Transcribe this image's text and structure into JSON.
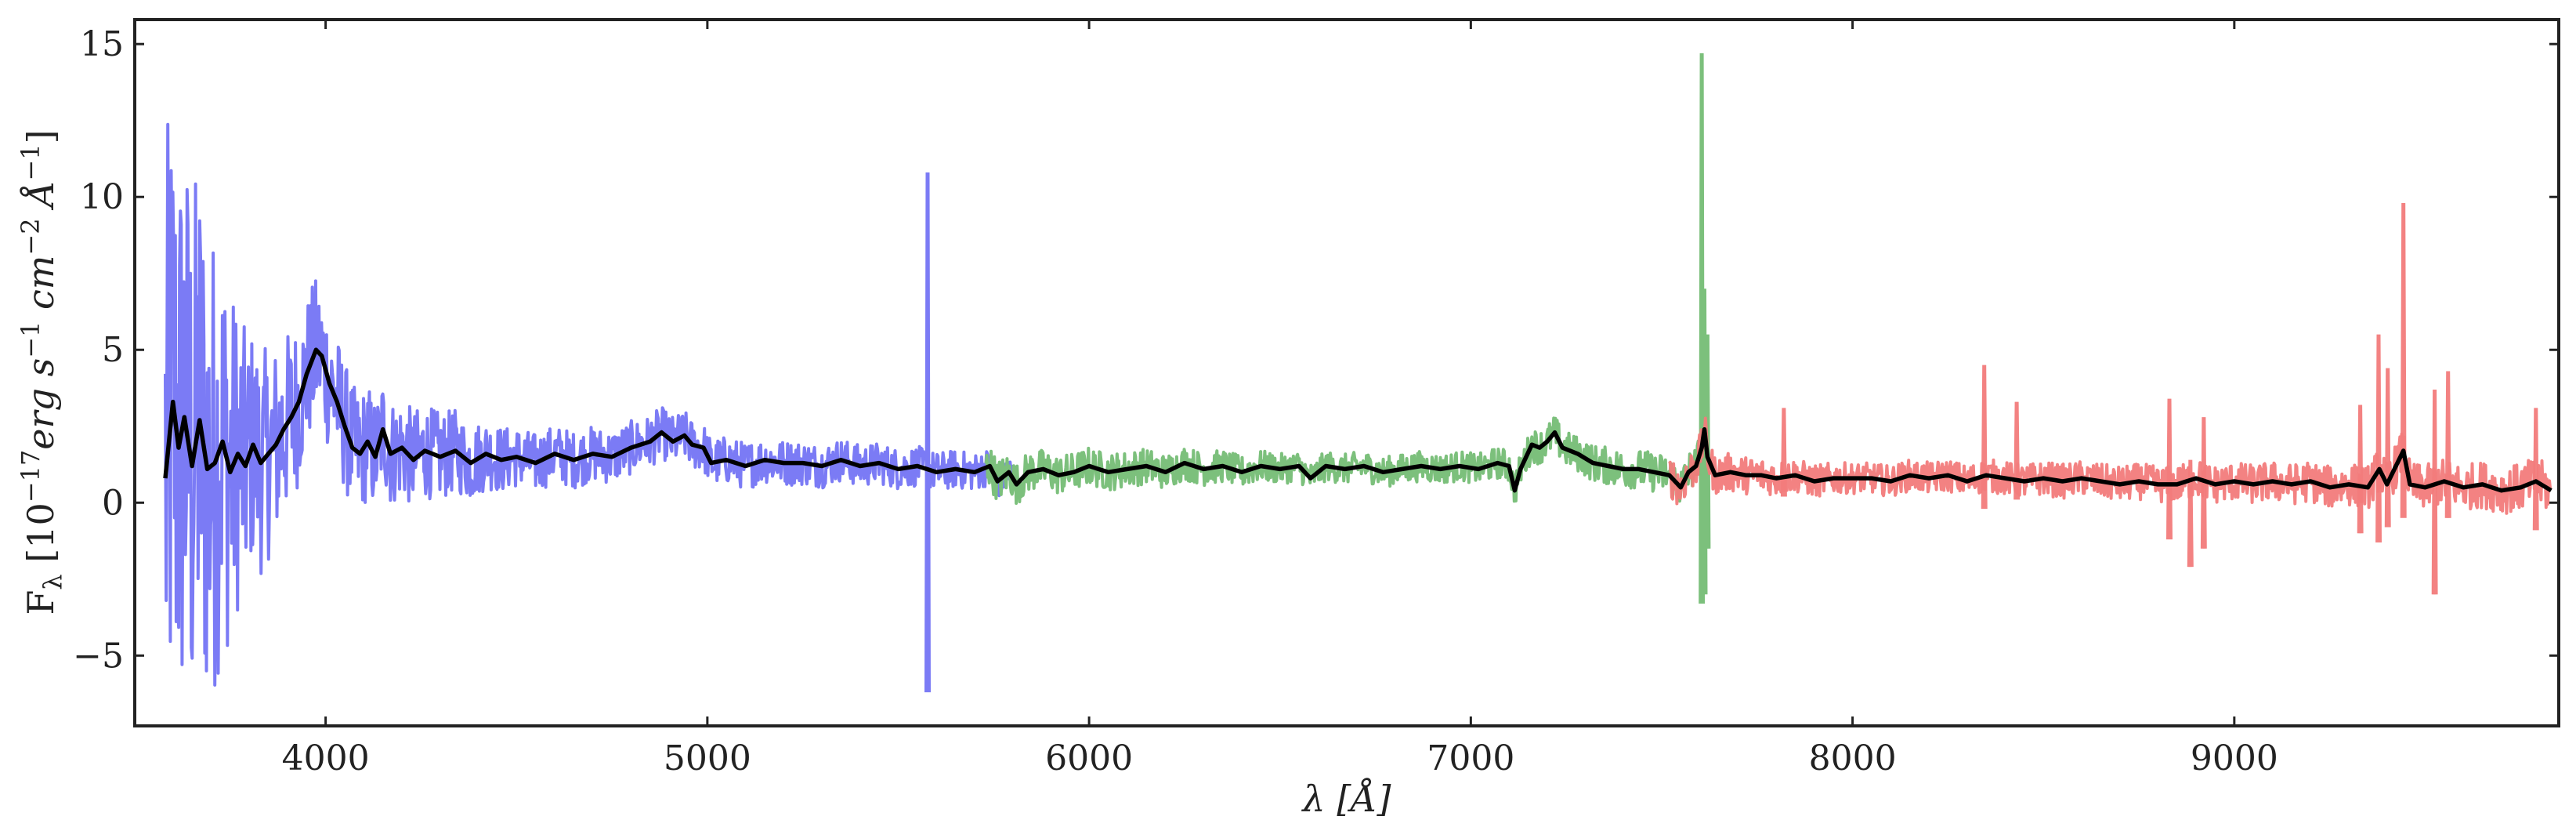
{
  "chart_data": {
    "type": "line",
    "title": "",
    "xlabel": "λ [Å]",
    "ylabel_parts": {
      "main": "F",
      "sub": "λ",
      "bracket_open": " [10",
      "exp1": "−17",
      "unit1": "erg s",
      "exp2": "−1",
      "unit2": " cm",
      "exp3": "−2",
      "unit3": " Å",
      "exp4": "−1",
      "bracket_close": "]"
    },
    "xlim": [
      3500,
      9850
    ],
    "ylim": [
      -7.3,
      15.8
    ],
    "x_ticks": [
      {
        "value": 4000,
        "label": "4000"
      },
      {
        "value": 5000,
        "label": "5000"
      },
      {
        "value": 6000,
        "label": "6000"
      },
      {
        "value": 7000,
        "label": "7000"
      },
      {
        "value": 8000,
        "label": "8000"
      },
      {
        "value": 9000,
        "label": "9000"
      }
    ],
    "y_ticks": [
      {
        "value": -5,
        "label": "−5"
      },
      {
        "value": 0,
        "label": "0"
      },
      {
        "value": 5,
        "label": "5"
      },
      {
        "value": 10,
        "label": "10"
      },
      {
        "value": 15,
        "label": "15"
      }
    ],
    "grid": false,
    "series": [
      {
        "color": "#7b7bf5",
        "opacity": 1.0,
        "noise": [
          [
            3580,
            2.0,
            11.0
          ],
          [
            3700,
            1.8,
            8.0
          ],
          [
            3800,
            1.6,
            4.0
          ],
          [
            3950,
            1.4,
            2.5
          ],
          [
            4150,
            1.0,
            1.8
          ],
          [
            4500,
            0.7,
            1.0
          ],
          [
            5000,
            0.55,
            0.8
          ],
          [
            5800,
            0.45,
            0.6
          ]
        ],
        "spikes": [
          {
            "x": 5577,
            "top": 10.8,
            "bottom": -6.2
          }
        ]
      },
      {
        "color": "#7cc07c",
        "opacity": 1.0,
        "noise": [
          [
            5730,
            0.55,
            0.7
          ],
          [
            6500,
            0.4,
            0.5
          ],
          [
            7000,
            0.45,
            0.5
          ],
          [
            7300,
            0.5,
            0.6
          ],
          [
            7620,
            0.55,
            0.7
          ]
        ],
        "spikes": [
          {
            "x": 7605,
            "top": 14.7,
            "bottom": -3.3
          },
          {
            "x": 7612,
            "top": 7.0,
            "bottom": -3.0
          },
          {
            "x": 7620,
            "top": 5.5,
            "bottom": -1.5
          }
        ]
      },
      {
        "color": "#f27b7b",
        "opacity": 0.95,
        "noise": [
          [
            7520,
            0.5,
            0.7
          ],
          [
            8000,
            0.4,
            0.5
          ],
          [
            8800,
            0.45,
            0.6
          ],
          [
            9300,
            0.55,
            0.7
          ],
          [
            9830,
            0.6,
            0.8
          ]
        ],
        "spikes": [
          {
            "x": 7820,
            "top": 3.1,
            "bottom": 0.2
          },
          {
            "x": 8345,
            "top": 4.5,
            "bottom": -0.2
          },
          {
            "x": 8430,
            "top": 3.3,
            "bottom": 0.1
          },
          {
            "x": 8830,
            "top": 3.4,
            "bottom": -1.2
          },
          {
            "x": 8885,
            "top": 1.4,
            "bottom": -2.1
          },
          {
            "x": 8920,
            "top": 2.8,
            "bottom": -1.5
          },
          {
            "x": 9330,
            "top": 3.2,
            "bottom": -1.0
          },
          {
            "x": 9378,
            "top": 5.5,
            "bottom": -1.3
          },
          {
            "x": 9402,
            "top": 4.4,
            "bottom": -0.8
          },
          {
            "x": 9443,
            "top": 9.8,
            "bottom": -0.5
          },
          {
            "x": 9525,
            "top": 3.7,
            "bottom": -3.0
          },
          {
            "x": 9560,
            "top": 4.3,
            "bottom": -0.5
          },
          {
            "x": 9790,
            "top": 3.1,
            "bottom": -0.9
          }
        ]
      },
      {
        "color": "#000000",
        "opacity": 1.0,
        "points": [
          [
            3580,
            0.8
          ],
          [
            3600,
            3.3
          ],
          [
            3615,
            1.8
          ],
          [
            3630,
            2.8
          ],
          [
            3650,
            1.2
          ],
          [
            3670,
            2.7
          ],
          [
            3690,
            1.1
          ],
          [
            3710,
            1.3
          ],
          [
            3730,
            2.0
          ],
          [
            3750,
            1.0
          ],
          [
            3770,
            1.6
          ],
          [
            3790,
            1.2
          ],
          [
            3810,
            1.9
          ],
          [
            3830,
            1.3
          ],
          [
            3850,
            1.6
          ],
          [
            3870,
            1.9
          ],
          [
            3890,
            2.4
          ],
          [
            3910,
            2.8
          ],
          [
            3930,
            3.3
          ],
          [
            3950,
            4.2
          ],
          [
            3975,
            5.0
          ],
          [
            3990,
            4.8
          ],
          [
            4010,
            3.9
          ],
          [
            4030,
            3.3
          ],
          [
            4050,
            2.5
          ],
          [
            4070,
            1.8
          ],
          [
            4090,
            1.6
          ],
          [
            4110,
            2.0
          ],
          [
            4130,
            1.5
          ],
          [
            4150,
            2.4
          ],
          [
            4170,
            1.6
          ],
          [
            4200,
            1.8
          ],
          [
            4230,
            1.4
          ],
          [
            4260,
            1.7
          ],
          [
            4300,
            1.5
          ],
          [
            4340,
            1.7
          ],
          [
            4380,
            1.3
          ],
          [
            4420,
            1.6
          ],
          [
            4460,
            1.4
          ],
          [
            4500,
            1.5
          ],
          [
            4550,
            1.3
          ],
          [
            4600,
            1.6
          ],
          [
            4650,
            1.4
          ],
          [
            4700,
            1.6
          ],
          [
            4750,
            1.5
          ],
          [
            4800,
            1.8
          ],
          [
            4850,
            2.0
          ],
          [
            4880,
            2.3
          ],
          [
            4910,
            2.0
          ],
          [
            4940,
            2.2
          ],
          [
            4960,
            1.9
          ],
          [
            4990,
            1.8
          ],
          [
            5010,
            1.3
          ],
          [
            5050,
            1.4
          ],
          [
            5100,
            1.2
          ],
          [
            5150,
            1.4
          ],
          [
            5200,
            1.3
          ],
          [
            5250,
            1.3
          ],
          [
            5300,
            1.2
          ],
          [
            5350,
            1.4
          ],
          [
            5400,
            1.2
          ],
          [
            5450,
            1.3
          ],
          [
            5500,
            1.1
          ],
          [
            5550,
            1.2
          ],
          [
            5600,
            1.0
          ],
          [
            5650,
            1.1
          ],
          [
            5700,
            1.0
          ],
          [
            5740,
            1.2
          ],
          [
            5760,
            0.7
          ],
          [
            5790,
            1.0
          ],
          [
            5810,
            0.6
          ],
          [
            5840,
            1.0
          ],
          [
            5880,
            1.1
          ],
          [
            5920,
            0.9
          ],
          [
            5960,
            1.0
          ],
          [
            6000,
            1.2
          ],
          [
            6050,
            1.0
          ],
          [
            6100,
            1.1
          ],
          [
            6150,
            1.2
          ],
          [
            6200,
            1.0
          ],
          [
            6250,
            1.3
          ],
          [
            6300,
            1.1
          ],
          [
            6350,
            1.2
          ],
          [
            6400,
            1.0
          ],
          [
            6450,
            1.2
          ],
          [
            6500,
            1.1
          ],
          [
            6550,
            1.2
          ],
          [
            6580,
            0.8
          ],
          [
            6620,
            1.2
          ],
          [
            6670,
            1.1
          ],
          [
            6720,
            1.2
          ],
          [
            6770,
            1.0
          ],
          [
            6820,
            1.1
          ],
          [
            6870,
            1.2
          ],
          [
            6920,
            1.1
          ],
          [
            6970,
            1.2
          ],
          [
            7020,
            1.1
          ],
          [
            7070,
            1.3
          ],
          [
            7100,
            1.2
          ],
          [
            7115,
            0.4
          ],
          [
            7130,
            1.1
          ],
          [
            7160,
            1.9
          ],
          [
            7180,
            1.8
          ],
          [
            7200,
            2.0
          ],
          [
            7220,
            2.3
          ],
          [
            7240,
            1.8
          ],
          [
            7280,
            1.6
          ],
          [
            7320,
            1.3
          ],
          [
            7360,
            1.2
          ],
          [
            7400,
            1.1
          ],
          [
            7440,
            1.1
          ],
          [
            7480,
            1.0
          ],
          [
            7520,
            0.9
          ],
          [
            7550,
            0.5
          ],
          [
            7570,
            1.0
          ],
          [
            7590,
            1.2
          ],
          [
            7605,
            1.8
          ],
          [
            7612,
            2.4
          ],
          [
            7620,
            1.5
          ],
          [
            7640,
            0.9
          ],
          [
            7680,
            1.0
          ],
          [
            7720,
            0.9
          ],
          [
            7760,
            0.9
          ],
          [
            7800,
            0.8
          ],
          [
            7850,
            0.9
          ],
          [
            7900,
            0.7
          ],
          [
            7950,
            0.8
          ],
          [
            8000,
            0.8
          ],
          [
            8050,
            0.8
          ],
          [
            8100,
            0.7
          ],
          [
            8150,
            0.9
          ],
          [
            8200,
            0.8
          ],
          [
            8250,
            0.9
          ],
          [
            8300,
            0.7
          ],
          [
            8350,
            0.9
          ],
          [
            8400,
            0.8
          ],
          [
            8450,
            0.7
          ],
          [
            8500,
            0.8
          ],
          [
            8550,
            0.7
          ],
          [
            8600,
            0.8
          ],
          [
            8650,
            0.7
          ],
          [
            8700,
            0.6
          ],
          [
            8750,
            0.7
          ],
          [
            8800,
            0.6
          ],
          [
            8850,
            0.6
          ],
          [
            8900,
            0.8
          ],
          [
            8950,
            0.6
          ],
          [
            9000,
            0.7
          ],
          [
            9050,
            0.6
          ],
          [
            9100,
            0.7
          ],
          [
            9150,
            0.6
          ],
          [
            9200,
            0.7
          ],
          [
            9250,
            0.5
          ],
          [
            9300,
            0.6
          ],
          [
            9350,
            0.5
          ],
          [
            9380,
            1.1
          ],
          [
            9400,
            0.6
          ],
          [
            9443,
            1.7
          ],
          [
            9460,
            0.6
          ],
          [
            9500,
            0.5
          ],
          [
            9550,
            0.7
          ],
          [
            9600,
            0.5
          ],
          [
            9650,
            0.6
          ],
          [
            9700,
            0.4
          ],
          [
            9750,
            0.5
          ],
          [
            9790,
            0.7
          ],
          [
            9830,
            0.4
          ]
        ]
      }
    ]
  }
}
